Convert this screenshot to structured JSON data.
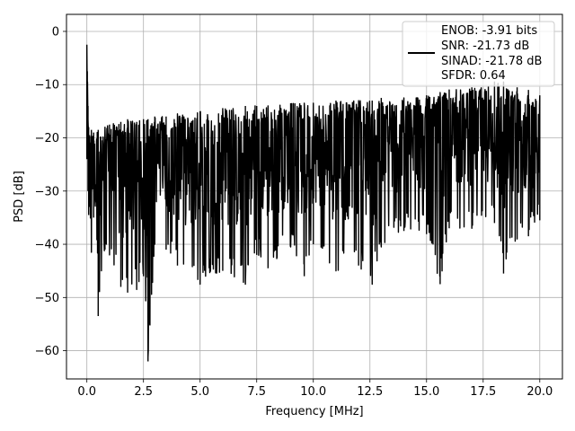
{
  "chart_data": {
    "type": "line",
    "title": "",
    "xlabel": "Frequency [MHz]",
    "ylabel": "PSD [dB]",
    "xlim": [
      -0.9,
      21.0
    ],
    "ylim": [
      -65.3,
      3.2
    ],
    "xticks": [
      0.0,
      2.5,
      5.0,
      7.5,
      10.0,
      12.5,
      15.0,
      17.5,
      20.0
    ],
    "xtick_labels": [
      "0.0",
      "2.5",
      "5.0",
      "7.5",
      "10.0",
      "12.5",
      "15.0",
      "17.5",
      "20.0"
    ],
    "yticks": [
      0,
      -10,
      -20,
      -30,
      -40,
      -50,
      -60
    ],
    "ytick_labels": [
      "0",
      "−10",
      "−20",
      "−30",
      "−40",
      "−50",
      "−60"
    ],
    "grid": true,
    "legend_position": "top-right",
    "legend": [
      "ENOB: -3.91 bits",
      "SNR: -21.73 dB",
      "SINAD: -21.78 dB",
      "SFDR: 0.64"
    ],
    "series": [
      {
        "color": "#000000",
        "style": "noisy spectrum, approx. uniform random between floor and ceiling, ceiling rising above ~15 MHz",
        "x": [
          0.0,
          0.02,
          0.05,
          0.08,
          0.12,
          0.2,
          0.3,
          0.5,
          0.8,
          1.0,
          1.5,
          1.8,
          2.2,
          2.5,
          2.7,
          3.0,
          3.5,
          4.0,
          5.0,
          6.0,
          7.0,
          7.5,
          8.0,
          9.0,
          9.6,
          10.0,
          11.0,
          12.0,
          12.6,
          13.0,
          14.0,
          15.0,
          15.6,
          16.0,
          17.0,
          18.0,
          18.4,
          19.0,
          19.5,
          20.0
        ],
        "upper": [
          -2.5,
          -7.5,
          -14.0,
          -18.0,
          -19.5,
          -18.5,
          -19.0,
          -18.5,
          -18.0,
          -17.5,
          -17.0,
          -16.5,
          -17.0,
          -16.5,
          -16.5,
          -16.0,
          -16.0,
          -15.5,
          -15.0,
          -14.5,
          -14.0,
          -14.0,
          -14.0,
          -13.5,
          -13.5,
          -13.5,
          -13.0,
          -13.0,
          -13.0,
          -12.5,
          -12.5,
          -12.0,
          -11.5,
          -11.0,
          -10.5,
          -9.5,
          -9.5,
          -10.5,
          -11.0,
          -12.0
        ],
        "lower": [
          -24.0,
          -17.0,
          -30.0,
          -34.5,
          -33.0,
          -41.5,
          -35.0,
          -53.5,
          -41.0,
          -42.0,
          -48.0,
          -49.0,
          -48.5,
          -46.0,
          -62.0,
          -40.0,
          -41.0,
          -44.0,
          -47.5,
          -45.0,
          -47.5,
          -42.0,
          -44.5,
          -40.5,
          -46.0,
          -40.0,
          -45.0,
          -44.0,
          -47.5,
          -40.5,
          -37.5,
          -38.0,
          -47.5,
          -37.0,
          -37.0,
          -36.0,
          -45.5,
          -39.0,
          -38.5,
          -35.5
        ]
      }
    ]
  }
}
